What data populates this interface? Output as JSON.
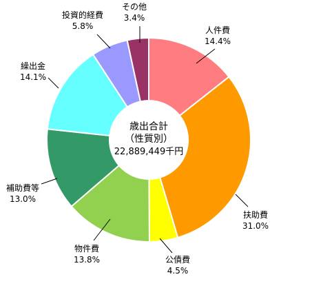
{
  "chart_data": {
    "type": "pie",
    "style": "donut",
    "center_label": {
      "line1": "歳出合計",
      "line2": "（性質別）",
      "line3": "22,889,449千円"
    },
    "slices": [
      {
        "label": "人件費",
        "pct_label": "14.4%",
        "value": 14.4,
        "color": "#FF7C80"
      },
      {
        "label": "扶助費",
        "pct_label": "31.0%",
        "value": 31.0,
        "color": "#FF9900"
      },
      {
        "label": "公債費",
        "pct_label": "4.5%",
        "value": 4.5,
        "color": "#FFFF00"
      },
      {
        "label": "物件費",
        "pct_label": "13.8%",
        "value": 13.8,
        "color": "#92D050"
      },
      {
        "label": "補助費等",
        "pct_label": "13.0%",
        "value": 13.0,
        "color": "#339966"
      },
      {
        "label": "繰出金",
        "pct_label": "14.1%",
        "value": 14.1,
        "color": "#66FFFF"
      },
      {
        "label": "投資的経費",
        "pct_label": "5.8%",
        "value": 5.8,
        "color": "#9999FF"
      },
      {
        "label": "その他",
        "pct_label": "3.4%",
        "value": 3.4,
        "color": "#993366"
      }
    ]
  }
}
